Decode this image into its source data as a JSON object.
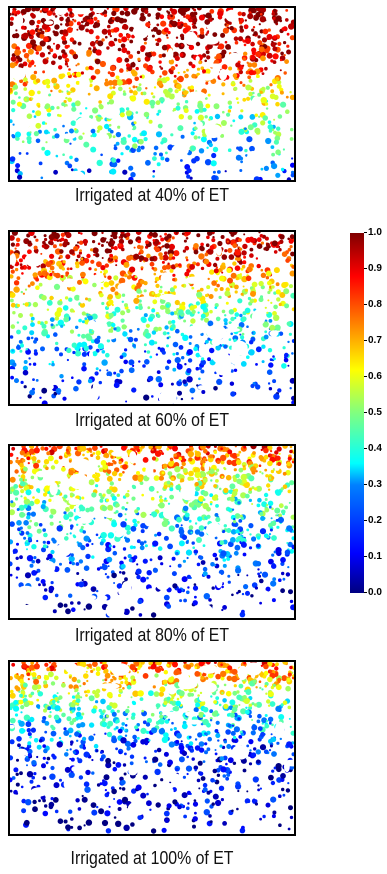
{
  "panels": [
    {
      "caption": "Irrigated at 40% of ET",
      "profile": [
        0.98,
        0.95,
        0.85,
        0.6,
        0.45,
        0.35,
        0.15
      ],
      "seed": 11
    },
    {
      "caption": "Irrigated at 60% of ET",
      "profile": [
        0.96,
        0.85,
        0.62,
        0.45,
        0.3,
        0.18,
        0.08
      ],
      "seed": 23
    },
    {
      "caption": "Irrigated at 80% of ET",
      "profile": [
        0.82,
        0.62,
        0.45,
        0.32,
        0.2,
        0.12,
        0.08
      ],
      "seed": 37
    },
    {
      "caption": "Irrigated at 100% of ET",
      "profile": [
        0.8,
        0.55,
        0.35,
        0.18,
        0.1,
        0.08,
        0.06
      ],
      "seed": 53
    }
  ],
  "colorbar": {
    "ticks": [
      "0.0",
      "0.1",
      "0.2",
      "0.3",
      "0.4",
      "0.5",
      "0.6",
      "0.7",
      "0.8",
      "0.9",
      "1.0"
    ],
    "min": 0.0,
    "max": 1.0,
    "colormap": "jet",
    "colors": [
      "#000080",
      "#0000ff",
      "#0080ff",
      "#00ffff",
      "#80ff80",
      "#ffff00",
      "#ff8000",
      "#ff0000",
      "#800000"
    ]
  }
}
